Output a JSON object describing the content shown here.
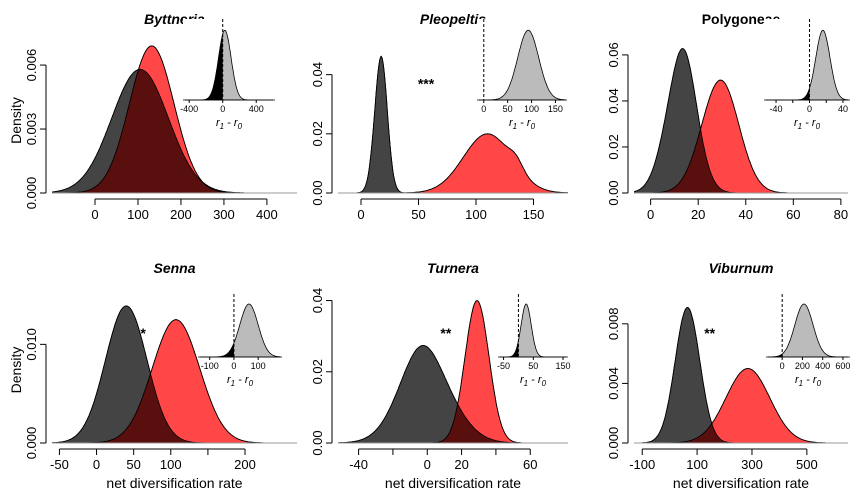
{
  "figure": {
    "xlabel": "net diversification rate",
    "ylabel": "Density",
    "inset_xlabel": "r1 - r0",
    "colors": {
      "group0": "#444444",
      "group1": "#ff4747",
      "overlap": "#5a0f0f",
      "inset_fill": "#bbbbbb",
      "inset_tail": "#000000"
    }
  },
  "chart_data": [
    {
      "type": "area",
      "title": "Byttneria",
      "italic": true,
      "xlim": [
        -100,
        470
      ],
      "ylim": [
        0,
        0.0068
      ],
      "xticks": [
        0,
        100,
        200,
        300,
        400
      ],
      "yticks": [
        0,
        0.003,
        0.006
      ],
      "xticklabels": [
        "0",
        "100",
        "200",
        "300",
        "400"
      ],
      "yticklabels": [
        "0.000",
        "0.003",
        "0.006"
      ],
      "show_xlabel": false,
      "show_ylabel": true,
      "series": [
        {
          "mean": 105,
          "sd": 66,
          "peak": 0.0058,
          "skew": 0.0,
          "bump": null
        },
        {
          "mean": 132,
          "sd": 52,
          "peak": 0.0069,
          "skew": 0.0,
          "bump": null
        }
      ],
      "significance": "",
      "inset": {
        "xlim": [
          -450,
          600
        ],
        "xticks": [
          -400,
          0,
          400
        ],
        "xticklabels": [
          "-400",
          "0",
          "400"
        ],
        "mean": 25,
        "sd": 75,
        "zero": 0
      }
    },
    {
      "type": "area",
      "title": "Pleopeltis",
      "italic": true,
      "xlim": [
        -20,
        180
      ],
      "ylim": [
        0,
        0.049
      ],
      "xticks": [
        0,
        50,
        100,
        150
      ],
      "yticks": [
        0,
        0.02,
        0.04
      ],
      "xticklabels": [
        "0",
        "50",
        "100",
        "150"
      ],
      "yticklabels": [
        "0.00",
        "0.02",
        "0.04"
      ],
      "show_xlabel": false,
      "show_ylabel": false,
      "series": [
        {
          "mean": 17,
          "sd": 5.5,
          "peak": 0.046,
          "skew": 0.1,
          "bump": null
        },
        {
          "mean": 110,
          "sd": 21,
          "peak": 0.02,
          "skew": 0.0,
          "bump": [
            135,
            6,
            0.003
          ]
        }
      ],
      "significance": "***",
      "inset": {
        "xlim": [
          -10,
          170
        ],
        "xticks": [
          0,
          50,
          100,
          150
        ],
        "xticklabels": [
          "0",
          "50",
          "100",
          "150"
        ],
        "mean": 93,
        "sd": 22,
        "zero": 0
      }
    },
    {
      "type": "area",
      "title": "Polygoneae",
      "italic": false,
      "xlim": [
        -7,
        83
      ],
      "ylim": [
        0,
        0.063
      ],
      "xticks": [
        0,
        20,
        40,
        60,
        80
      ],
      "yticks": [
        0,
        0.02,
        0.04,
        0.06
      ],
      "xticklabels": [
        "0",
        "20",
        "40",
        "60",
        "80"
      ],
      "yticklabels": [
        "0.00",
        "0.02",
        "0.04",
        "0.06"
      ],
      "show_xlabel": false,
      "show_ylabel": false,
      "series": [
        {
          "mean": 12,
          "sd": 6.4,
          "peak": 0.061,
          "skew": 0.25,
          "bump": null
        },
        {
          "mean": 29,
          "sd": 7.8,
          "peak": 0.049,
          "skew": 0.05,
          "bump": null
        }
      ],
      "significance": "",
      "inset": {
        "xlim": [
          -52,
          46
        ],
        "xticks": [
          -40,
          -20,
          0,
          20,
          40
        ],
        "xticklabels": [
          "-40",
          "",
          "0",
          "",
          "40"
        ],
        "mean": 16,
        "sd": 8.5,
        "zero": 0
      }
    },
    {
      "type": "area",
      "title": "Senna",
      "italic": true,
      "xlim": [
        -60,
        270
      ],
      "ylim": [
        0,
        0.0148
      ],
      "xticks": [
        -50,
        0,
        50,
        100,
        150,
        200
      ],
      "yticks": [
        0,
        0.01
      ],
      "xticklabels": [
        "-50",
        "0",
        "50",
        "100",
        "",
        "200"
      ],
      "yticklabels": [
        "0.000",
        "0.010"
      ],
      "show_xlabel": false,
      "show_ylabel": true,
      "series": [
        {
          "mean": 40,
          "sd": 28,
          "peak": 0.0139,
          "skew": 0.0,
          "bump": null
        },
        {
          "mean": 107,
          "sd": 32,
          "peak": 0.0125,
          "skew": 0.0,
          "bump": null
        }
      ],
      "significance": "*",
      "inset": {
        "xlim": [
          -140,
          190
        ],
        "xticks": [
          -100,
          0,
          100
        ],
        "xticklabels": [
          "-100",
          "0",
          "100"
        ],
        "mean": 62,
        "sd": 38,
        "zero": 0
      }
    },
    {
      "type": "area",
      "title": "Turnera",
      "italic": true,
      "xlim": [
        -52,
        82
      ],
      "ylim": [
        0,
        0.041
      ],
      "xticks": [
        -40,
        -20,
        0,
        20,
        40,
        60
      ],
      "yticks": [
        0,
        0.02,
        0.04
      ],
      "xticklabels": [
        "-40",
        "",
        "0",
        "20",
        "",
        "60"
      ],
      "yticklabels": [
        "0.00",
        "0.02",
        "0.04"
      ],
      "show_xlabel": true,
      "show_ylabel": false,
      "series": [
        {
          "mean": 2,
          "sd": 15,
          "peak": 0.026,
          "skew": -0.35,
          "bump": null
        },
        {
          "mean": 29,
          "sd": 7,
          "peak": 0.04,
          "skew": 0.0,
          "bump": null
        }
      ],
      "significance": "**",
      "inset": {
        "xlim": [
          -62,
          160
        ],
        "xticks": [
          -50,
          50,
          150
        ],
        "xticklabels": [
          "-50",
          "50",
          "150"
        ],
        "mean": 26,
        "sd": 17,
        "zero": 0
      }
    },
    {
      "type": "area",
      "title": "Viburnum",
      "italic": true,
      "xlim": [
        -130,
        650
      ],
      "ylim": [
        0,
        0.0098
      ],
      "xticks": [
        -100,
        100,
        300,
        500
      ],
      "yticks": [
        0,
        0.004,
        0.008
      ],
      "xticklabels": [
        "-100",
        "100",
        "300",
        "500"
      ],
      "yticklabels": [
        "0.000",
        "0.004",
        "0.008"
      ],
      "show_xlabel": false,
      "show_ylabel": false,
      "series": [
        {
          "mean": 65,
          "sd": 45,
          "peak": 0.0091,
          "skew": 0.0,
          "bump": null
        },
        {
          "mean": 285,
          "sd": 80,
          "peak": 0.005,
          "skew": 0.0,
          "bump": null
        }
      ],
      "significance": "**",
      "inset": {
        "xlim": [
          -140,
          650
        ],
        "xticks": [
          0,
          200,
          400,
          600
        ],
        "xticklabels": [
          "0",
          "200",
          "400",
          "600"
        ],
        "mean": 215,
        "sd": 90,
        "zero": 0
      }
    }
  ]
}
